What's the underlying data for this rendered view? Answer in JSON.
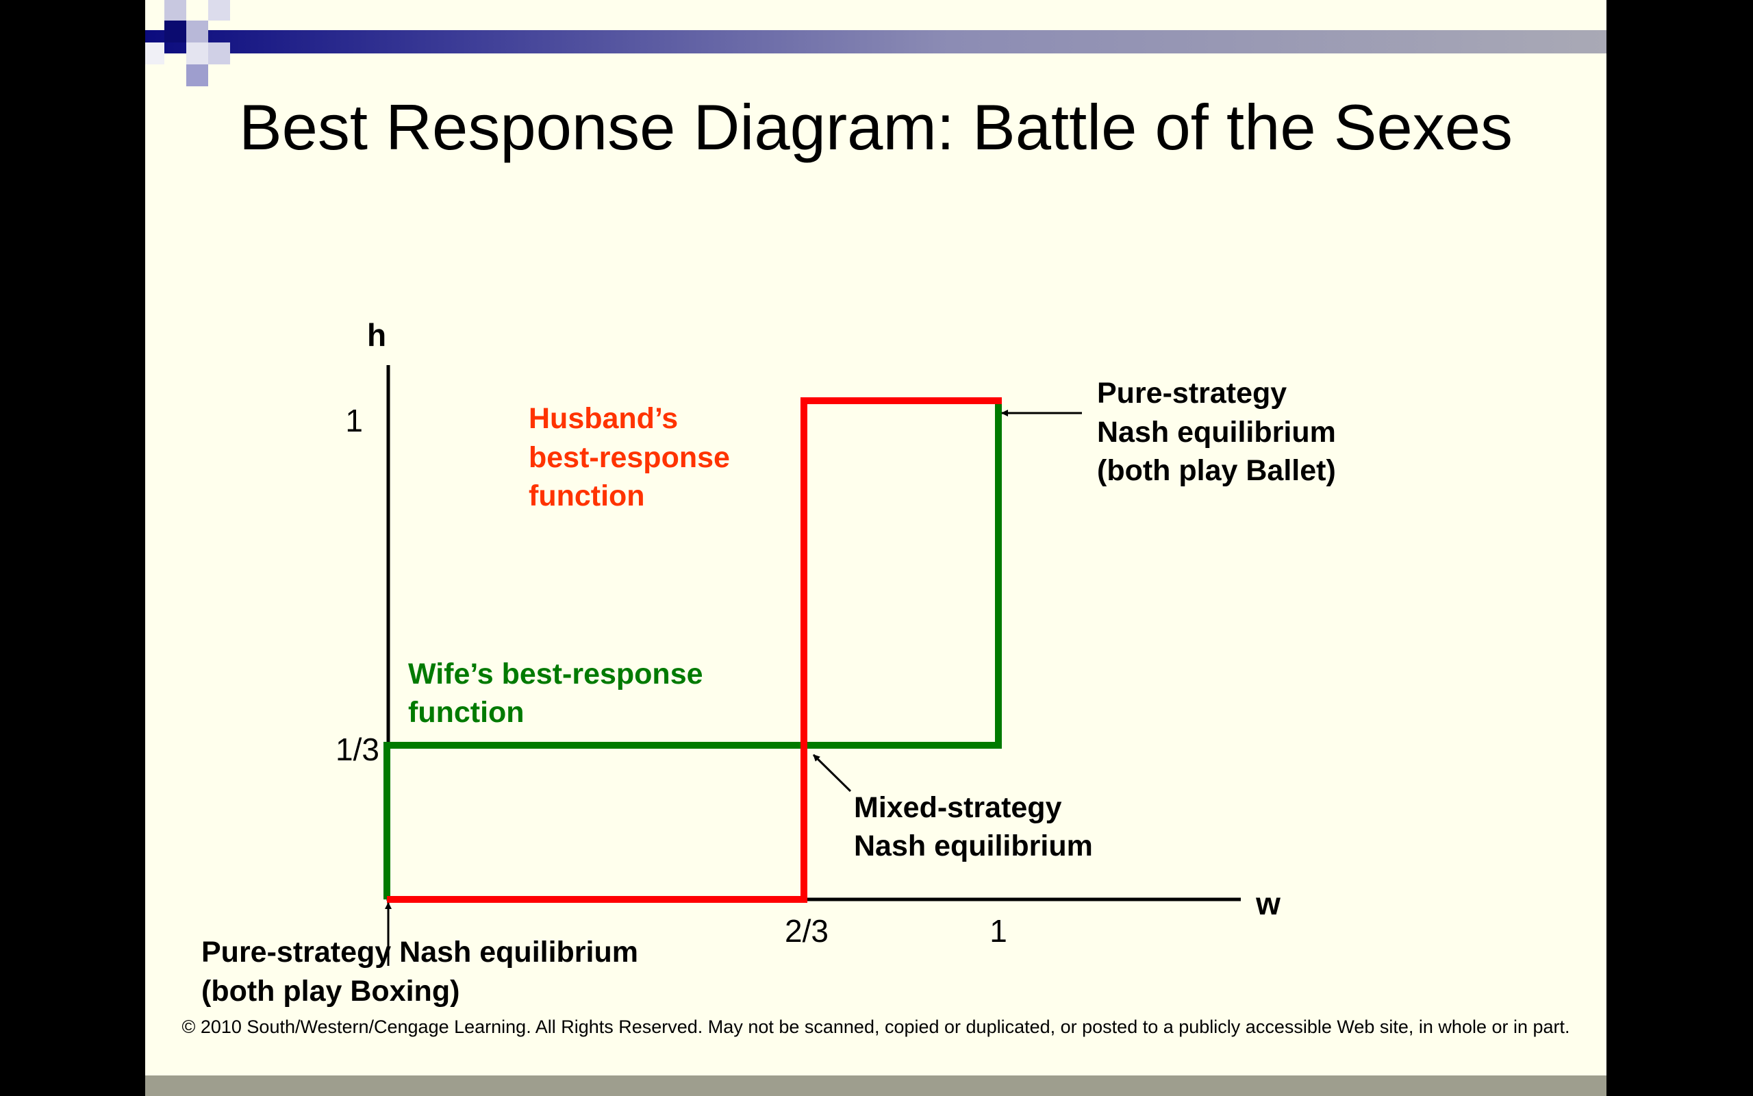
{
  "slide": {
    "title": "Best Response Diagram: Battle of the Sexes",
    "footer": "© 2010 South/Western/Cengage Learning. All Rights Reserved. May not be scanned, copied or duplicated, or posted to a publicly accessible Web site, in whole or in part."
  },
  "colors": {
    "husband": "#FF0000",
    "wife": "#007A00",
    "husband_label": "#FF3300",
    "header_dark": "#0B0B7E",
    "background": "#FFFFED"
  },
  "diagram": {
    "axis_x_label": "w",
    "axis_y_label": "h",
    "ticks_x": [
      "2/3",
      "1"
    ],
    "ticks_y": [
      "1",
      "1/3"
    ],
    "husband_label": [
      "Husband’s",
      "best-response",
      "function"
    ],
    "wife_label": [
      "Wife’s best-response",
      "function"
    ],
    "pure_ballet_label": [
      "Pure-strategy",
      "Nash equilibrium",
      "(both play Ballet)"
    ],
    "mixed_label": [
      "Mixed-strategy",
      "Nash equilibrium"
    ],
    "pure_boxing_label": [
      "Pure-strategy Nash equilibrium",
      "(both play Boxing)"
    ]
  }
}
